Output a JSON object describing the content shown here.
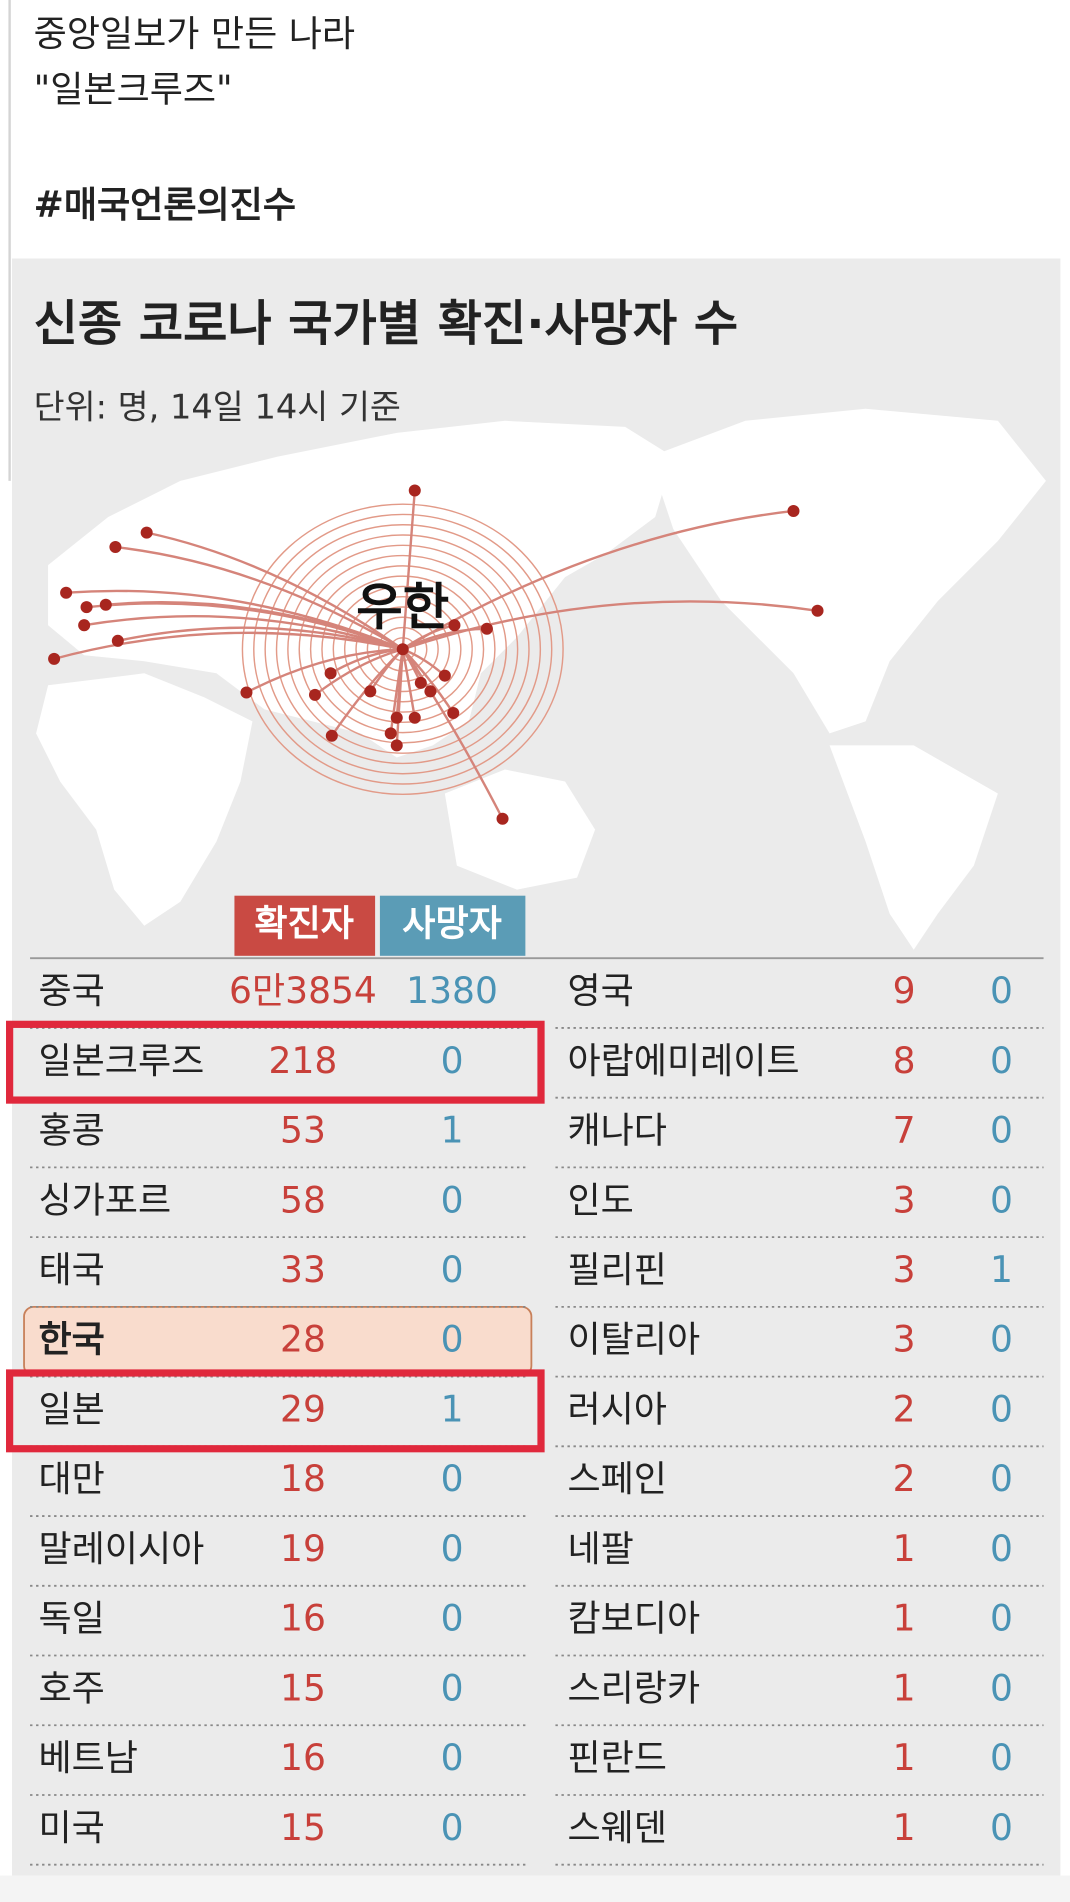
{
  "post": {
    "lines": [
      "중앙일보가 만든 나라",
      "\"일본크루즈\"",
      "#매국언론의진수"
    ]
  },
  "infographic": {
    "title": "신종 코로나 국가별 확진·사망자 수",
    "subtitle": "단위: 명, 14일 14시 기준",
    "map_label": "우한",
    "table": {
      "headers": [
        "확진자",
        "사망자"
      ],
      "left_rows": [
        [
          "중국",
          "6만3854",
          1380
        ],
        [
          "일본크루즈",
          218,
          0
        ],
        [
          "홍콩",
          53,
          1
        ],
        [
          "싱가포르",
          58,
          0
        ],
        [
          "태국",
          33,
          0
        ],
        [
          "한국",
          28,
          0
        ],
        [
          "일본",
          29,
          1
        ],
        [
          "대만",
          18,
          0
        ],
        [
          "말레이시아",
          19,
          0
        ],
        [
          "독일",
          16,
          0
        ],
        [
          "호주",
          15,
          0
        ],
        [
          "베트남",
          16,
          0
        ],
        [
          "미국",
          15,
          0
        ]
      ],
      "right_rows": [
        [
          "영국",
          9,
          0
        ],
        [
          "아랍에미레이트",
          8,
          0
        ],
        [
          "캐나다",
          7,
          0
        ],
        [
          "인도",
          3,
          0
        ],
        [
          "필리핀",
          3,
          1
        ],
        [
          "이탈리아",
          3,
          0
        ],
        [
          "러시아",
          2,
          0
        ],
        [
          "스페인",
          2,
          0
        ],
        [
          "네팔",
          1,
          0
        ],
        [
          "캄보디아",
          1,
          0
        ],
        [
          "스리랑카",
          1,
          0
        ],
        [
          "핀란드",
          1,
          0
        ],
        [
          "스웨덴",
          1,
          0
        ]
      ]
    }
  }
}
